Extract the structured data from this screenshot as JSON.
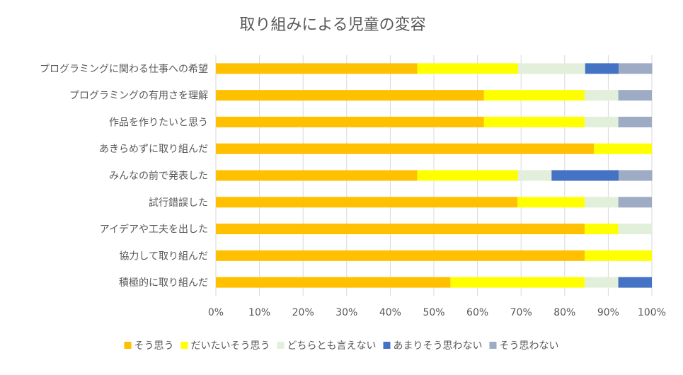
{
  "chart_data": {
    "type": "bar",
    "orientation": "horizontal",
    "stacked": "percent",
    "title": "取り組みによる児童の変容",
    "categories": [
      "プログラミングに関わる仕事への希望",
      "プログラミングの有用さを理解",
      "作品を作りたいと思う",
      "あきらめずに取り組んだ",
      "みんなの前で発表した",
      "試行錯誤した",
      "アイデアや工夫を出した",
      "協力して取り組んだ",
      "積極的に取り組んだ"
    ],
    "series": [
      {
        "name": "そう思う",
        "color": "#FFC000",
        "values": [
          46.2,
          61.5,
          61.5,
          86.7,
          46.2,
          69.2,
          84.6,
          84.6,
          53.8
        ]
      },
      {
        "name": "だいたいそう思う",
        "color": "#FFFF00",
        "values": [
          23.1,
          23.1,
          23.1,
          13.3,
          23.1,
          15.4,
          7.7,
          15.4,
          30.8
        ]
      },
      {
        "name": "どちらとも言えない",
        "color": "#E2EFDA",
        "values": [
          15.4,
          7.7,
          7.7,
          0,
          7.7,
          7.7,
          7.7,
          0,
          7.7
        ]
      },
      {
        "name": "あまりそう思わない",
        "color": "#4472C4",
        "values": [
          7.7,
          0,
          0,
          0,
          15.4,
          0,
          0,
          0,
          7.7
        ]
      },
      {
        "name": "そう思わない",
        "color": "#9DABC4",
        "values": [
          7.7,
          7.7,
          7.7,
          0,
          7.7,
          7.7,
          0,
          0,
          0
        ]
      }
    ],
    "xlim": [
      0,
      100
    ],
    "xticks": [
      "0%",
      "10%",
      "20%",
      "30%",
      "40%",
      "50%",
      "60%",
      "70%",
      "80%",
      "90%",
      "100%"
    ],
    "grid": true,
    "legend": "bottom",
    "colors": {
      "grid": "#D9D9D9",
      "text": "#595959"
    }
  }
}
